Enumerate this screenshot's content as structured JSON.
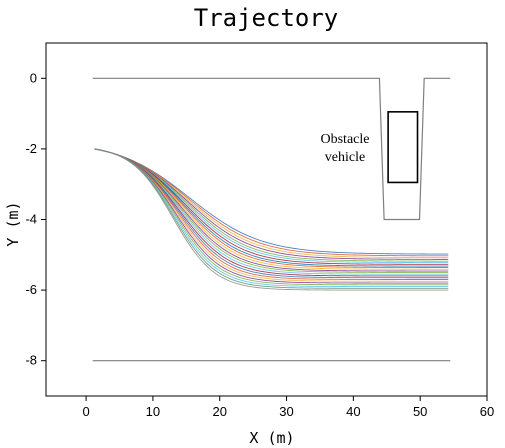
{
  "chart_data": {
    "type": "line",
    "title": "Trajectory",
    "xlabel": "X (m)",
    "ylabel": "Y (m)",
    "xlim": [
      -6,
      60
    ],
    "ylim": [
      -9,
      1
    ],
    "xticks": [
      0,
      10,
      20,
      30,
      40,
      50,
      60
    ],
    "yticks": [
      0,
      -2,
      -4,
      -6,
      -8
    ],
    "grid": false,
    "road_boundaries": {
      "upper": {
        "x": [
          1,
          43.9,
          44.6,
          49.9,
          50.6,
          54.5
        ],
        "y": [
          0,
          0,
          -4,
          -4,
          0,
          0
        ]
      },
      "lower": {
        "x": [
          1,
          54.5
        ],
        "y": [
          -8,
          -8
        ]
      }
    },
    "obstacle_vehicle": {
      "label": "Obstacle\nvehicle",
      "x_range": [
        45.2,
        49.6
      ],
      "y_range": [
        -2.95,
        -0.95
      ]
    },
    "trajectories": {
      "start": [
        1.2,
        -2.0
      ],
      "x_end": 54.5,
      "final_y": [
        -4.98,
        -5.03,
        -5.08,
        -5.13,
        -5.18,
        -5.22,
        -5.27,
        -5.32,
        -5.36,
        -5.41,
        -5.46,
        -5.5,
        -5.55,
        -5.6,
        -5.65,
        -5.7,
        -5.75,
        -5.8,
        -5.85,
        -5.9,
        -5.95,
        -6.0
      ],
      "colors": [
        "#2a6fb5",
        "#d9532a",
        "#e8b43a",
        "#7e2e8e",
        "#77ac3e",
        "#4dbeee",
        "#a2142f",
        "#0072bd",
        "#d95319",
        "#edb120",
        "#7e2f8e",
        "#77ac30",
        "#4dbeee",
        "#a2142f",
        "#2a6fb5",
        "#d9532a",
        "#e8b43a",
        "#7e2e8e",
        "#77ac3e",
        "#4dbeee",
        "#5b8f6b",
        "#8a8a8a"
      ]
    }
  }
}
